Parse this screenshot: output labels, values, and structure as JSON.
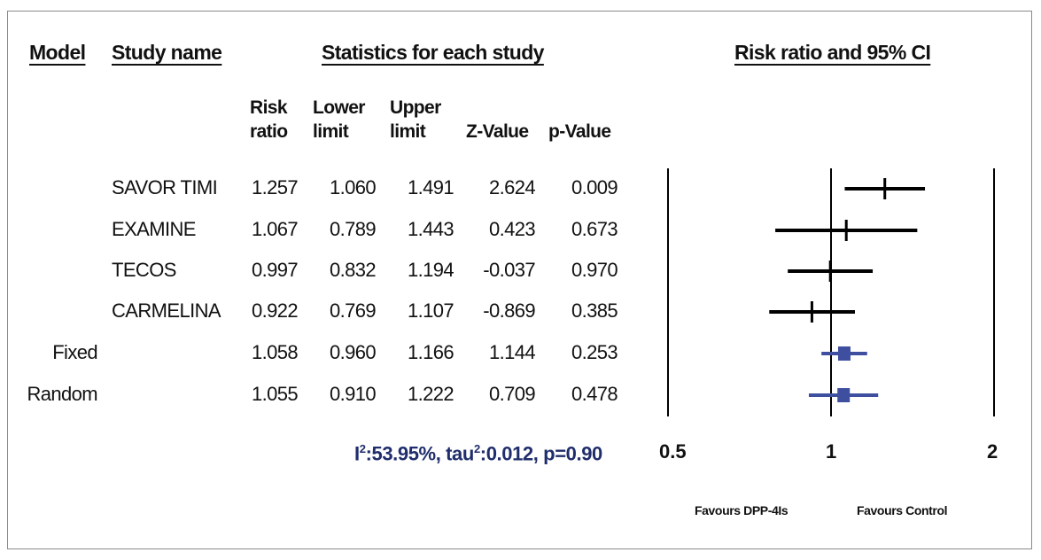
{
  "headers": {
    "model": "Model",
    "study_name": "Study name",
    "statistics": "Statistics for each study",
    "plot": "Risk ratio and 95% CI"
  },
  "columns": {
    "risk_ratio": [
      "Risk",
      "ratio"
    ],
    "lower_limit": [
      "Lower",
      "limit"
    ],
    "upper_limit": [
      "Upper",
      "limit"
    ],
    "z_value": "Z-Value",
    "p_value": "p-Value"
  },
  "rows": [
    {
      "model": "",
      "study": "SAVOR TIMI",
      "rr": "1.257",
      "lower": "1.060",
      "upper": "1.491",
      "z": "2.624",
      "p": "0.009"
    },
    {
      "model": "",
      "study": "EXAMINE",
      "rr": "1.067",
      "lower": "0.789",
      "upper": "1.443",
      "z": "0.423",
      "p": "0.673"
    },
    {
      "model": "",
      "study": "TECOS",
      "rr": "0.997",
      "lower": "0.832",
      "upper": "1.194",
      "z": "-0.037",
      "p": "0.970"
    },
    {
      "model": "",
      "study": "CARMELINA",
      "rr": "0.922",
      "lower": "0.769",
      "upper": "1.107",
      "z": "-0.869",
      "p": "0.385"
    },
    {
      "model": "Fixed",
      "study": "",
      "rr": "1.058",
      "lower": "0.960",
      "upper": "1.166",
      "z": "1.144",
      "p": "0.253"
    },
    {
      "model": "Random",
      "study": "",
      "rr": "1.055",
      "lower": "0.910",
      "upper": "1.222",
      "z": "0.709",
      "p": "0.478"
    }
  ],
  "heterogeneity": {
    "i2_label": "I",
    "i2_value": ":53.95%, tau",
    "tau2_value": ":0.012, p=0.90",
    "sup": "2"
  },
  "axis_labels": {
    "favours_left": "Favours DPP-4Is",
    "favours_right": "Favours Control"
  },
  "chart_data": {
    "type": "forest",
    "x_scale": "log",
    "xlim": [
      0.5,
      2
    ],
    "x_ticks": [
      "0.5",
      "1",
      "2"
    ],
    "reference_line": 1,
    "colors": {
      "study": "#000000",
      "pooled": "#3f4fa0"
    },
    "points": [
      {
        "name": "SAVOR TIMI",
        "estimate": 1.257,
        "lower": 1.06,
        "upper": 1.491,
        "kind": "study"
      },
      {
        "name": "EXAMINE",
        "estimate": 1.067,
        "lower": 0.789,
        "upper": 1.443,
        "kind": "study"
      },
      {
        "name": "TECOS",
        "estimate": 0.997,
        "lower": 0.832,
        "upper": 1.194,
        "kind": "study"
      },
      {
        "name": "CARMELINA",
        "estimate": 0.922,
        "lower": 0.769,
        "upper": 1.107,
        "kind": "study"
      },
      {
        "name": "Fixed",
        "estimate": 1.058,
        "lower": 0.96,
        "upper": 1.166,
        "kind": "pooled"
      },
      {
        "name": "Random",
        "estimate": 1.055,
        "lower": 0.91,
        "upper": 1.222,
        "kind": "pooled"
      }
    ]
  }
}
